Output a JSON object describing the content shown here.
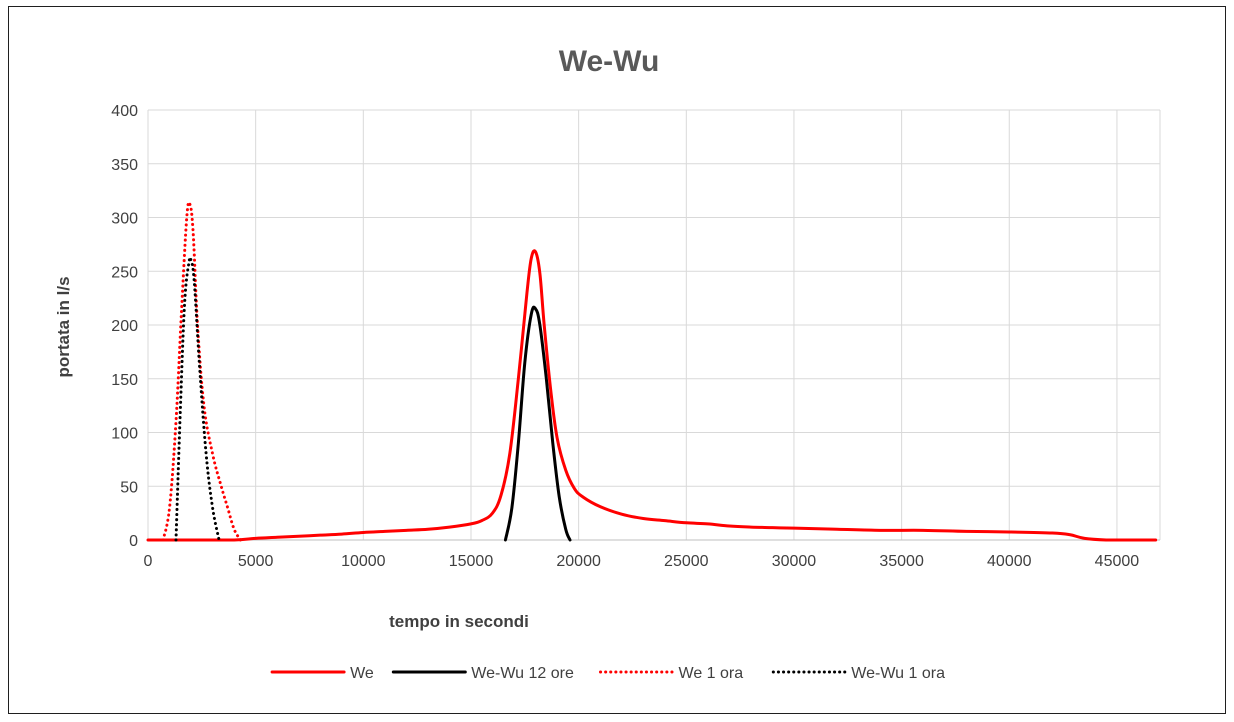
{
  "chart_data": {
    "type": "line",
    "title": "We-Wu",
    "xlabel": "tempo in secondi",
    "ylabel": "portata in l/s",
    "xlim": [
      0,
      47000
    ],
    "ylim": [
      0,
      400
    ],
    "x_ticks": [
      0,
      5000,
      10000,
      15000,
      20000,
      25000,
      30000,
      35000,
      40000,
      45000
    ],
    "y_ticks": [
      0,
      50,
      100,
      150,
      200,
      250,
      300,
      350,
      400
    ],
    "grid": true,
    "legend_position": "bottom",
    "series": [
      {
        "name": "We",
        "color": "#ff0000",
        "dash": "solid",
        "x": [
          0,
          2000,
          4000,
          5000,
          6000,
          7000,
          8000,
          9000,
          10000,
          11000,
          12000,
          13000,
          14000,
          15000,
          15500,
          16000,
          16400,
          16800,
          17200,
          17600,
          17800,
          18000,
          18200,
          18400,
          18700,
          19000,
          19400,
          19800,
          20200,
          21000,
          22000,
          23000,
          24000,
          25000,
          26000,
          27000,
          28000,
          29000,
          30000,
          32000,
          34000,
          36000,
          38000,
          40000,
          42000,
          42800,
          43500,
          44500,
          45500,
          46800
        ],
        "y": [
          0,
          0,
          0,
          1.5,
          2.5,
          3.5,
          4.5,
          5.5,
          7,
          8,
          9,
          10,
          12,
          15,
          18,
          25,
          42,
          80,
          150,
          230,
          262,
          268,
          248,
          200,
          140,
          95,
          65,
          48,
          40,
          31,
          24,
          20,
          18,
          16,
          15,
          13,
          12,
          11.5,
          11,
          10,
          9,
          9,
          8,
          7.5,
          6.5,
          5,
          1.5,
          0,
          0,
          0
        ]
      },
      {
        "name": "We-Wu 12 ore",
        "color": "#000000",
        "dash": "solid",
        "x": [
          16600,
          16900,
          17200,
          17500,
          17800,
          18000,
          18200,
          18500,
          18800,
          19100,
          19400,
          19600
        ],
        "y": [
          0,
          30,
          90,
          165,
          210,
          215,
          200,
          150,
          90,
          40,
          10,
          0
        ]
      },
      {
        "name": "We 1 ora",
        "color": "#ff0000",
        "dash": "dotted",
        "x": [
          700,
          1000,
          1300,
          1550,
          1800,
          1950,
          2100,
          2300,
          2600,
          3000,
          3400,
          3700,
          4000,
          4300
        ],
        "y": [
          0,
          30,
          110,
          210,
          300,
          312,
          285,
          200,
          125,
          80,
          50,
          30,
          10,
          0
        ]
      },
      {
        "name": "We-Wu 1 ora",
        "color": "#000000",
        "dash": "dotted",
        "x": [
          1300,
          1500,
          1700,
          1900,
          2000,
          2150,
          2400,
          2700,
          3000,
          3300
        ],
        "y": [
          0,
          120,
          220,
          258,
          260,
          240,
          160,
          80,
          30,
          0
        ]
      }
    ]
  }
}
